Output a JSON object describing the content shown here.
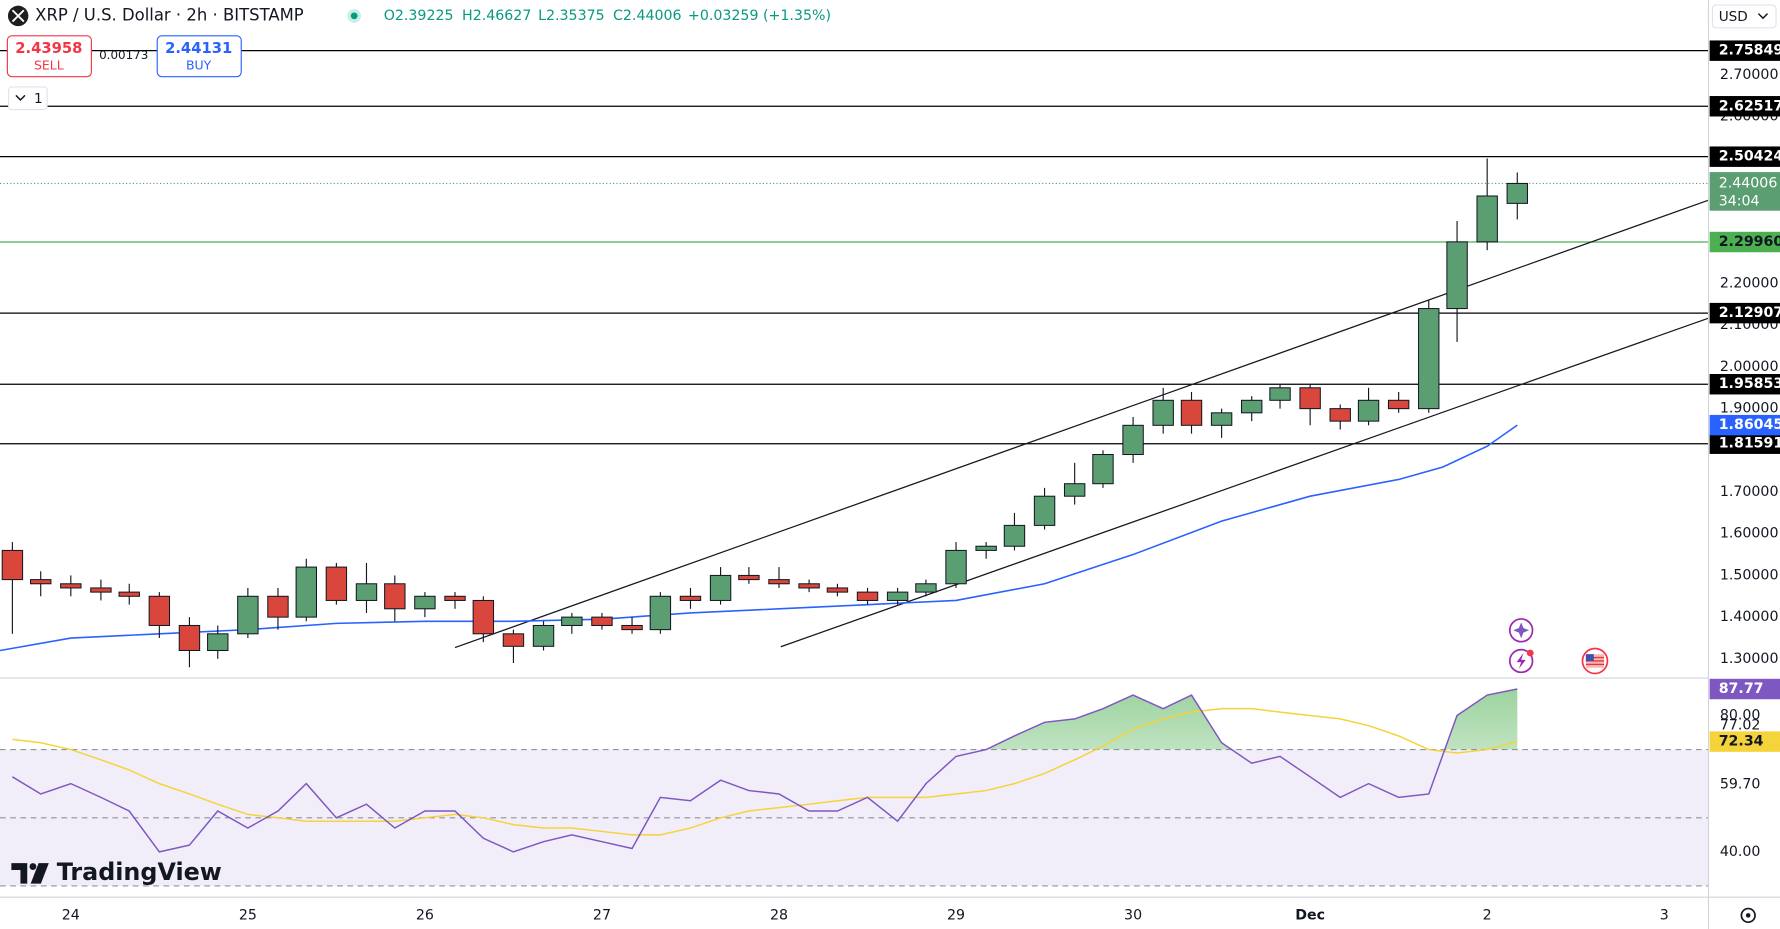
{
  "header": {
    "symbol": "XRP / U.S. Dollar · 2h · BITSTAMP",
    "ohlc": [
      "O2.39225",
      "H2.46627",
      "L2.35375",
      "C2.44006",
      "+0.03259 (+1.35%)"
    ],
    "sell_price": "2.43958",
    "sell_label": "SELL",
    "spread": "0.00173",
    "buy_price": "2.44131",
    "buy_label": "BUY",
    "interval_button": "1",
    "currency": "USD",
    "logo": "TradingView"
  },
  "chart_data": [
    {
      "type": "candlestick",
      "x": [
        -0.33,
        -0.17,
        0,
        0.17,
        0.33,
        0.5,
        0.67,
        0.83,
        1,
        1.17,
        1.33,
        1.5,
        1.67,
        1.83,
        2,
        2.17,
        2.33,
        2.5,
        2.67,
        2.83,
        3,
        3.17,
        3.33,
        3.5,
        3.67,
        3.83,
        4,
        4.17,
        4.33,
        4.5,
        4.67,
        4.83,
        5,
        5.17,
        5.33,
        5.5,
        5.67,
        5.83,
        6,
        6.17,
        6.33,
        6.5,
        6.67,
        6.83,
        7,
        7.17,
        7.33,
        7.5,
        7.67,
        7.83,
        8,
        8.17
      ],
      "open": [
        1.56,
        1.49,
        1.48,
        1.47,
        1.46,
        1.45,
        1.38,
        1.32,
        1.36,
        1.45,
        1.4,
        1.52,
        1.44,
        1.48,
        1.42,
        1.45,
        1.44,
        1.36,
        1.33,
        1.38,
        1.4,
        1.38,
        1.37,
        1.45,
        1.44,
        1.5,
        1.49,
        1.48,
        1.47,
        1.46,
        1.44,
        1.46,
        1.48,
        1.56,
        1.57,
        1.62,
        1.69,
        1.72,
        1.79,
        1.86,
        1.92,
        1.86,
        1.89,
        1.92,
        1.95,
        1.9,
        1.87,
        1.92,
        1.9,
        2.14,
        2.3,
        2.39225
      ],
      "high": [
        1.58,
        1.51,
        1.5,
        1.49,
        1.48,
        1.46,
        1.4,
        1.38,
        1.47,
        1.47,
        1.54,
        1.53,
        1.53,
        1.5,
        1.46,
        1.46,
        1.45,
        1.37,
        1.39,
        1.41,
        1.41,
        1.4,
        1.46,
        1.47,
        1.52,
        1.52,
        1.52,
        1.49,
        1.48,
        1.47,
        1.47,
        1.49,
        1.58,
        1.58,
        1.65,
        1.71,
        1.77,
        1.8,
        1.88,
        1.95,
        1.94,
        1.9,
        1.93,
        1.96,
        1.96,
        1.91,
        1.95,
        1.94,
        2.16,
        2.35,
        2.5,
        2.46627
      ],
      "low": [
        1.36,
        1.45,
        1.45,
        1.44,
        1.43,
        1.35,
        1.28,
        1.3,
        1.35,
        1.37,
        1.39,
        1.43,
        1.41,
        1.39,
        1.4,
        1.42,
        1.34,
        1.29,
        1.32,
        1.36,
        1.37,
        1.36,
        1.36,
        1.42,
        1.43,
        1.48,
        1.47,
        1.46,
        1.45,
        1.43,
        1.43,
        1.45,
        1.47,
        1.54,
        1.56,
        1.61,
        1.67,
        1.71,
        1.77,
        1.84,
        1.84,
        1.83,
        1.87,
        1.9,
        1.86,
        1.85,
        1.86,
        1.89,
        1.89,
        2.06,
        2.28,
        2.35375
      ],
      "close": [
        1.49,
        1.48,
        1.47,
        1.46,
        1.45,
        1.38,
        1.32,
        1.36,
        1.45,
        1.4,
        1.52,
        1.44,
        1.48,
        1.42,
        1.45,
        1.44,
        1.36,
        1.33,
        1.38,
        1.4,
        1.38,
        1.37,
        1.45,
        1.44,
        1.5,
        1.49,
        1.48,
        1.47,
        1.46,
        1.44,
        1.46,
        1.48,
        1.56,
        1.57,
        1.62,
        1.69,
        1.72,
        1.79,
        1.86,
        1.92,
        1.86,
        1.89,
        1.92,
        1.95,
        1.9,
        1.87,
        1.92,
        1.9,
        2.14,
        2.3,
        2.41,
        2.44006
      ],
      "up_color": "#5a9e72",
      "down_color": "#d9473c",
      "xlim": [
        -0.4,
        9.25
      ],
      "ylim": [
        1.254,
        2.88
      ],
      "xticks": [
        {
          "value": 0,
          "label": "24"
        },
        {
          "value": 1,
          "label": "25"
        },
        {
          "value": 2,
          "label": "26"
        },
        {
          "value": 3,
          "label": "27"
        },
        {
          "value": 4,
          "label": "28"
        },
        {
          "value": 5,
          "label": "29"
        },
        {
          "value": 6,
          "label": "30"
        },
        {
          "value": 7,
          "label": "Dec"
        },
        {
          "value": 8,
          "label": "2"
        },
        {
          "value": 9,
          "label": "3"
        }
      ],
      "yticks": [
        {
          "value": 1.3,
          "label": "1.30000"
        },
        {
          "value": 1.4,
          "label": "1.40000"
        },
        {
          "value": 1.5,
          "label": "1.50000"
        },
        {
          "value": 1.6,
          "label": "1.60000"
        },
        {
          "value": 1.7,
          "label": "1.70000"
        },
        {
          "value": 1.9,
          "label": "1.90000"
        },
        {
          "value": 2,
          "label": "2.00000"
        },
        {
          "value": 2.1,
          "label": "2.10000"
        },
        {
          "value": 2.2,
          "label": "2.20000"
        },
        {
          "value": 2.6,
          "label": "2.60000"
        },
        {
          "value": 2.7,
          "label": "2.70000"
        }
      ],
      "levels": [
        {
          "value": 2.75849,
          "color": "#000000"
        },
        {
          "value": 2.62517,
          "color": "#000000"
        },
        {
          "value": 2.50424,
          "color": "#000000"
        },
        {
          "value": 2.2996,
          "label": "2.29960",
          "color": "#4caf50"
        },
        {
          "value": 2.12907,
          "color": "#000000"
        },
        {
          "value": 1.95853,
          "color": "#000000"
        },
        {
          "value": 1.81591,
          "color": "#000000"
        }
      ],
      "current": {
        "value": 2.44006,
        "countdown": "34:04",
        "color": "#5a9e72"
      },
      "ema": {
        "color": "#2962ff",
        "x": [
          -0.4,
          0,
          0.5,
          1,
          1.5,
          2,
          2.5,
          3,
          3.5,
          4,
          4.5,
          5,
          5.5,
          6,
          6.5,
          7,
          7.5,
          7.75,
          8,
          8.17
        ],
        "values": [
          1.32,
          1.35,
          1.36,
          1.37,
          1.385,
          1.39,
          1.39,
          1.395,
          1.41,
          1.42,
          1.43,
          1.44,
          1.48,
          1.55,
          1.63,
          1.69,
          1.73,
          1.76,
          1.81,
          1.86045
        ]
      },
      "trendlines": [
        {
          "x": [
            2.17,
            9.25
          ],
          "y": [
            1.327,
            2.4
          ]
        },
        {
          "x": [
            4.01,
            9.25
          ],
          "y": [
            1.329,
            2.117
          ]
        }
      ]
    },
    {
      "type": "line",
      "ylim": [
        26.7,
        91
      ],
      "yticks": [
        {
          "value": 40,
          "label": "40.00"
        },
        {
          "value": 59.7,
          "label": "59.70"
        },
        {
          "value": 77.02,
          "label": "77.02"
        },
        {
          "value": 80,
          "label": "80.00"
        }
      ],
      "bands": [
        30,
        50,
        70
      ],
      "series": [
        {
          "color": "#7e57c2",
          "values": [
            62,
            57,
            60,
            56,
            52,
            40,
            42,
            52,
            47,
            52,
            60,
            50,
            54,
            47,
            52,
            52,
            44,
            40,
            43,
            45,
            43,
            41,
            56,
            55,
            61,
            58,
            57,
            52,
            52,
            56,
            49,
            60,
            68,
            70,
            74,
            78,
            79,
            82,
            86,
            82,
            86,
            72,
            66,
            68,
            62,
            56,
            60,
            56,
            57,
            80,
            86,
            87.77
          ]
        },
        {
          "color": "#f5d33a",
          "values": [
            73,
            72,
            70,
            67,
            64,
            60,
            57,
            54,
            51,
            50,
            49,
            49,
            49,
            49,
            50,
            51,
            50,
            48,
            47,
            47,
            46,
            45,
            45,
            47,
            50,
            52,
            53,
            54,
            55,
            56,
            56,
            56,
            57,
            58,
            60,
            63,
            67,
            71,
            76,
            79,
            81,
            82,
            82,
            81,
            80,
            79,
            77,
            74,
            70,
            69,
            70,
            72.34
          ]
        }
      ]
    }
  ]
}
